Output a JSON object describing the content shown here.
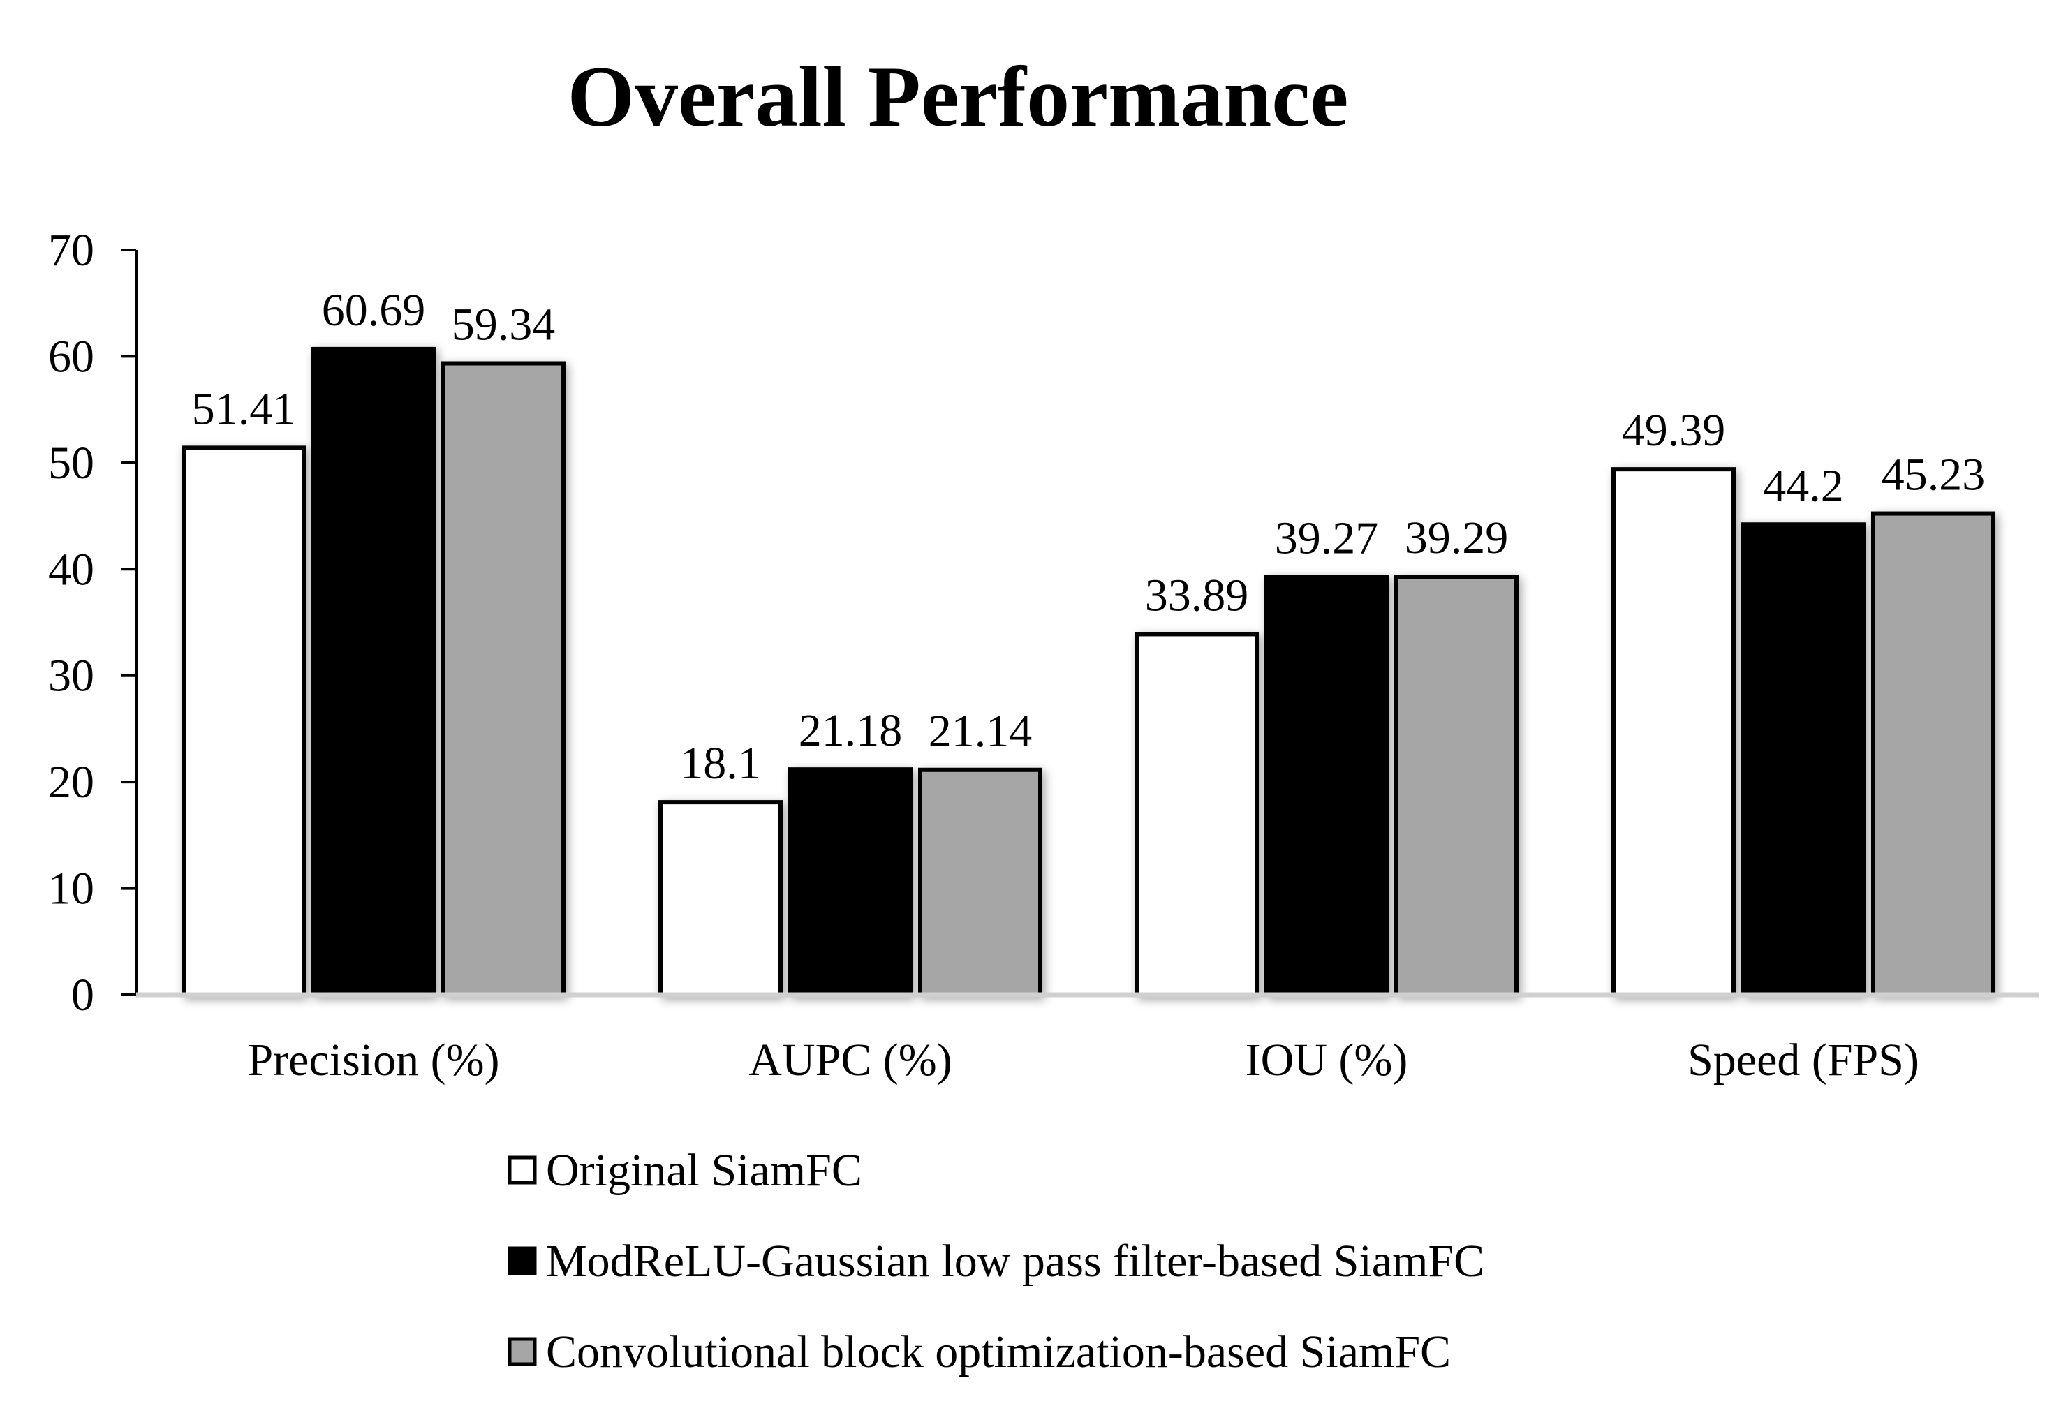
{
  "chart_data": {
    "type": "bar",
    "title": "Overall Performance",
    "xlabel": "",
    "ylabel": "",
    "ylim": [
      0,
      70
    ],
    "yticks": [
      0,
      10,
      20,
      30,
      40,
      50,
      60,
      70
    ],
    "grid": false,
    "legend_position": "bottom",
    "categories": [
      "Precision (%)",
      "AUPC (%)",
      "IOU (%)",
      "Speed (FPS)"
    ],
    "series": [
      {
        "name": "Original SiamFC",
        "color": "#ffffff",
        "values": [
          51.41,
          18.1,
          33.89,
          49.39
        ],
        "labels": [
          "51.41",
          "18.1",
          "33.89",
          "49.39"
        ]
      },
      {
        "name": "ModReLU-Gaussian low pass filter-based SiamFC",
        "color": "#000000",
        "values": [
          60.69,
          21.18,
          39.27,
          44.2
        ],
        "labels": [
          "60.69",
          "21.18",
          "39.27",
          "44.2"
        ]
      },
      {
        "name": "Convolutional block optimization-based SiamFC",
        "color": "#a6a6a6",
        "values": [
          59.34,
          21.14,
          39.29,
          45.23
        ],
        "labels": [
          "59.34",
          "21.14",
          "39.29",
          "45.23"
        ]
      }
    ]
  }
}
